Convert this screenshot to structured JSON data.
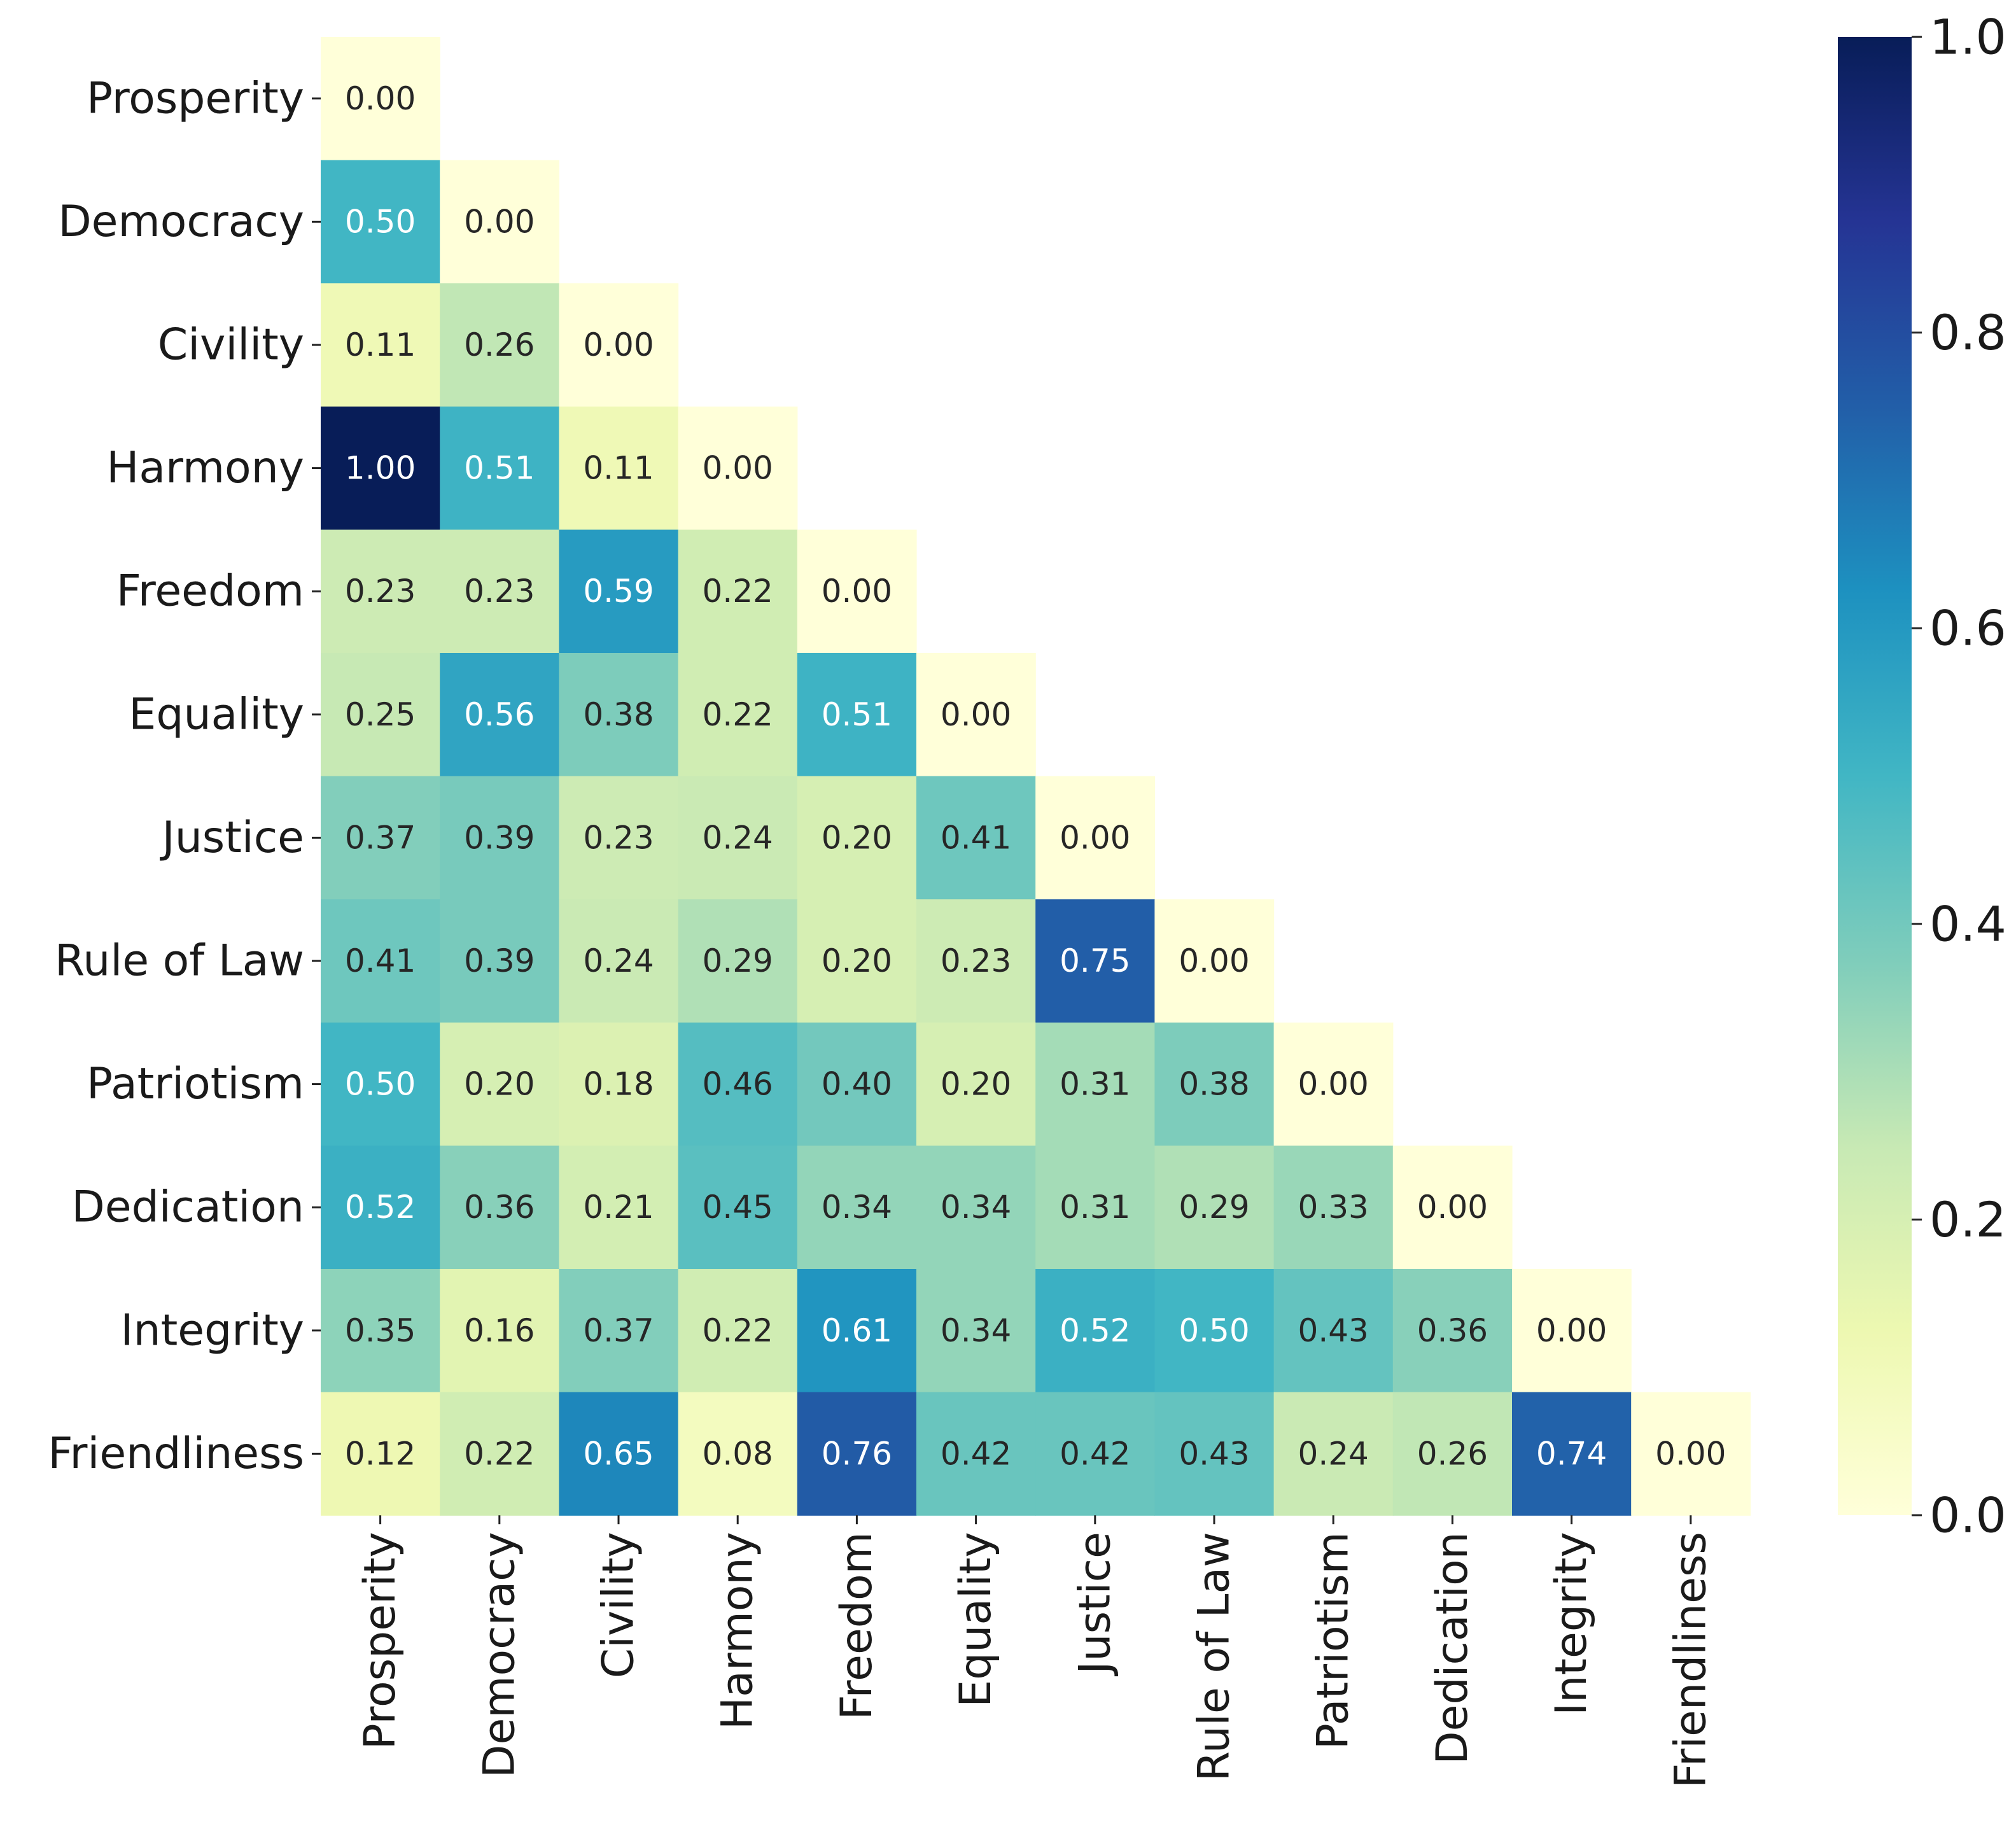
{
  "chart_data": {
    "type": "heatmap",
    "title": "",
    "xlabel": "",
    "ylabel": "",
    "rows": [
      "Prosperity",
      "Democracy",
      "Civility",
      "Harmony",
      "Freedom",
      "Equality",
      "Justice",
      "Rule of Law",
      "Patriotism",
      "Dedication",
      "Integrity",
      "Friendliness"
    ],
    "columns": [
      "Prosperity",
      "Democracy",
      "Civility",
      "Harmony",
      "Freedom",
      "Equality",
      "Justice",
      "Rule of Law",
      "Patriotism",
      "Dedication",
      "Integrity",
      "Friendliness"
    ],
    "mask": "upper-triangle",
    "values": [
      [
        0.0
      ],
      [
        0.5,
        0.0
      ],
      [
        0.11,
        0.26,
        0.0
      ],
      [
        1.0,
        0.51,
        0.11,
        0.0
      ],
      [
        0.23,
        0.23,
        0.59,
        0.22,
        0.0
      ],
      [
        0.25,
        0.56,
        0.38,
        0.22,
        0.51,
        0.0
      ],
      [
        0.37,
        0.39,
        0.23,
        0.24,
        0.2,
        0.41,
        0.0
      ],
      [
        0.41,
        0.39,
        0.24,
        0.29,
        0.2,
        0.23,
        0.75,
        0.0
      ],
      [
        0.5,
        0.2,
        0.18,
        0.46,
        0.4,
        0.2,
        0.31,
        0.38,
        0.0
      ],
      [
        0.52,
        0.36,
        0.21,
        0.45,
        0.34,
        0.34,
        0.31,
        0.29,
        0.33,
        0.0
      ],
      [
        0.35,
        0.16,
        0.37,
        0.22,
        0.61,
        0.34,
        0.52,
        0.5,
        0.43,
        0.36,
        0.0
      ],
      [
        0.12,
        0.22,
        0.65,
        0.08,
        0.76,
        0.42,
        0.42,
        0.43,
        0.24,
        0.26,
        0.74,
        0.0
      ]
    ],
    "cell_format": "0.00",
    "colormap": "YlGnBu",
    "colorbar": {
      "range": [
        0.0,
        1.0
      ],
      "ticks": [
        "0.0",
        "0.2",
        "0.4",
        "0.6",
        "0.8",
        "1.0"
      ],
      "placement": "right"
    },
    "colors": {
      "text_dark": "#262626",
      "text_light": "#ffffff",
      "ramp": [
        "#ffffd9",
        "#edf8b1",
        "#c7e9b4",
        "#7fcdbb",
        "#41b6c4",
        "#1d91c0",
        "#225ea8",
        "#253494",
        "#081d58"
      ]
    }
  }
}
